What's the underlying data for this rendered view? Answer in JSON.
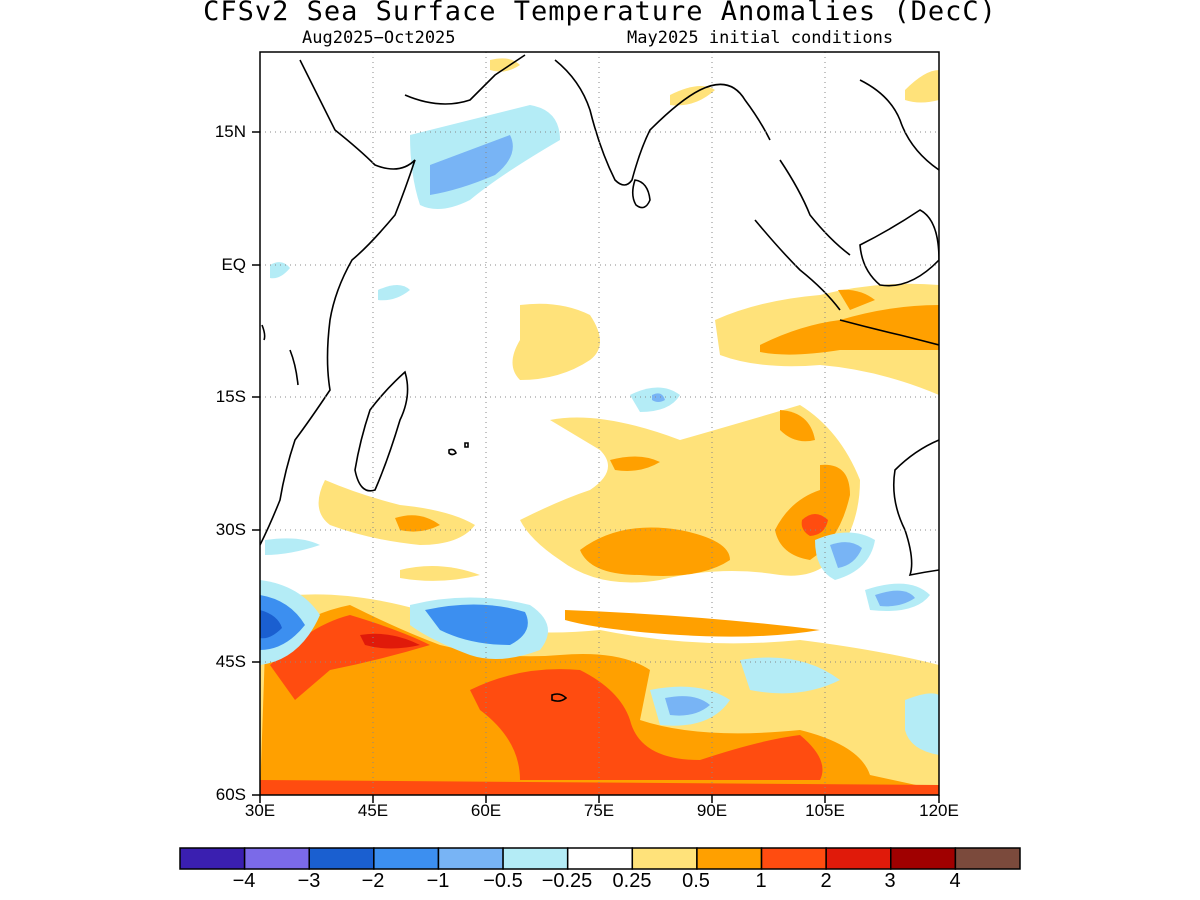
{
  "title": "CFSv2 Sea Surface Temperature Anomalies (DecC)",
  "subtitle_left": "Aug2025-Oct2025",
  "subtitle_right": "May2025 initial conditions",
  "map": {
    "lat_labels": [
      "15N",
      "EQ",
      "15S",
      "30S",
      "45S",
      "60S"
    ],
    "lon_labels": [
      "30E",
      "45E",
      "60E",
      "75E",
      "90E",
      "105E",
      "120E"
    ],
    "lat_range": [
      -60,
      24
    ],
    "lon_range": [
      30,
      120
    ],
    "grid": "dotted"
  },
  "colorbar": {
    "colors": [
      "#3a1fb0",
      "#7b6ae8",
      "#1a5fd0",
      "#3c8ff0",
      "#78b4f5",
      "#b4ecf6",
      "#ffffff",
      "#ffe27a",
      "#ffa000",
      "#ff4c10",
      "#e01a0a",
      "#a00000",
      "#7b4a3c"
    ],
    "labels": [
      "-4",
      "-3",
      "-2",
      "-1",
      "-0.5",
      "-0.25",
      "0.25",
      "0.5",
      "1",
      "2",
      "3",
      "4"
    ]
  }
}
